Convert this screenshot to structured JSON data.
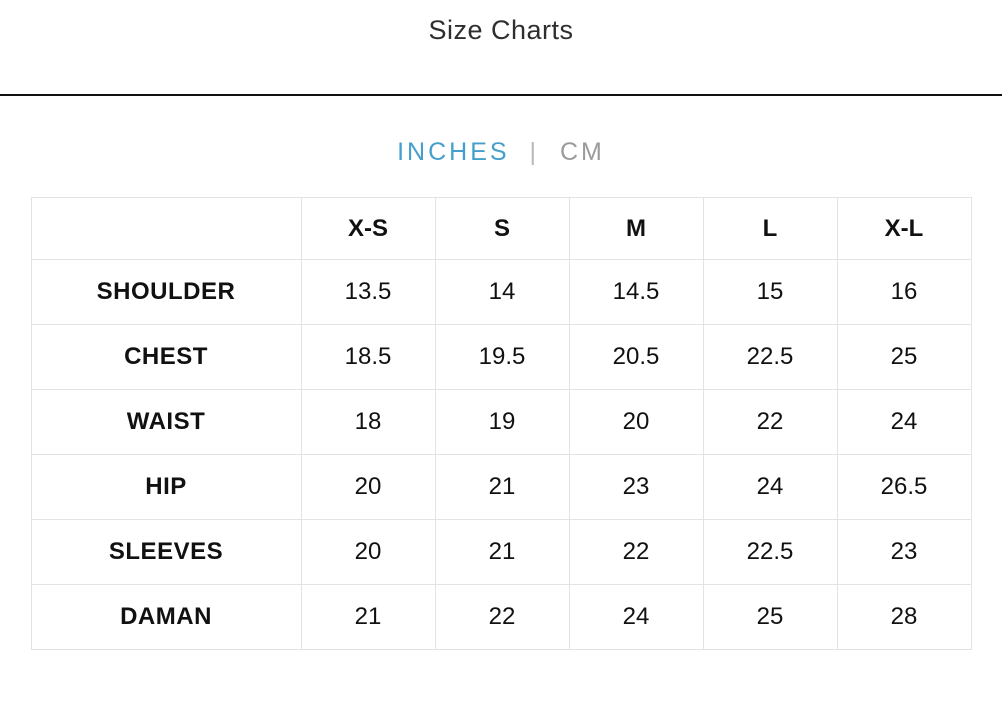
{
  "page": {
    "title": "Size Charts"
  },
  "tabs": {
    "inches_label": "INCHES",
    "divider": "|",
    "cm_label": "CM",
    "active_color": "#459fca",
    "inactive_color": "#9b9b9b"
  },
  "table": {
    "columns": [
      "",
      "X-S",
      "S",
      "M",
      "L",
      "X-L"
    ],
    "rows": [
      {
        "label": "SHOULDER",
        "values": [
          "13.5",
          "14",
          "14.5",
          "15",
          "16"
        ]
      },
      {
        "label": "CHEST",
        "values": [
          "18.5",
          "19.5",
          "20.5",
          "22.5",
          "25"
        ]
      },
      {
        "label": "WAIST",
        "values": [
          "18",
          "19",
          "20",
          "22",
          "24"
        ]
      },
      {
        "label": "HIP",
        "values": [
          "20",
          "21",
          "23",
          "24",
          "26.5"
        ]
      },
      {
        "label": "SLEEVES",
        "values": [
          "20",
          "21",
          "22",
          "22.5",
          "23"
        ]
      },
      {
        "label": "DAMAN",
        "values": [
          "21",
          "22",
          "24",
          "25",
          "28"
        ]
      }
    ],
    "border_color": "#e3e3e3"
  }
}
